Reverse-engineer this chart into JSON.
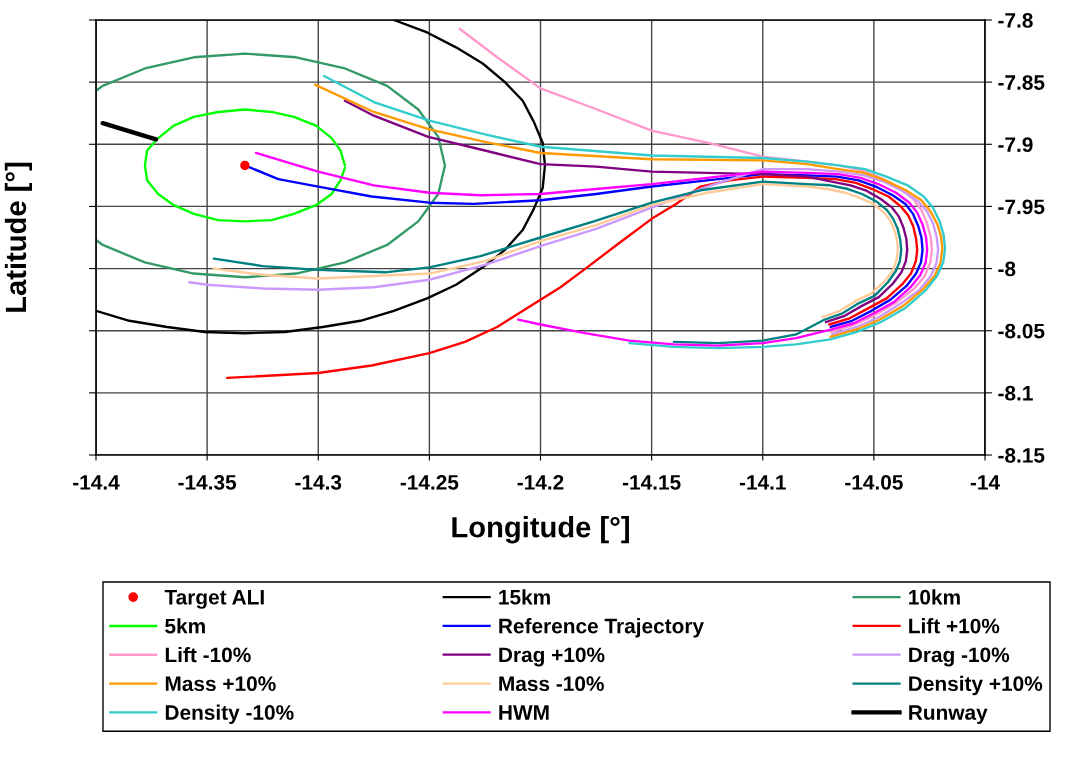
{
  "chart_data": {
    "type": "line",
    "xlabel": "Longitude [°]",
    "ylabel": "Latitude [°]",
    "xlim": [
      -14.4,
      -14
    ],
    "xticks": [
      -14.4,
      -14.35,
      -14.3,
      -14.25,
      -14.2,
      -14.15,
      -14.1,
      -14.05,
      -14
    ],
    "ylim": [
      -8.15,
      -7.8
    ],
    "yticks": [
      -7.8,
      -7.85,
      -7.9,
      -7.95,
      -8,
      -8.05,
      -8.1,
      -8.15
    ],
    "grid": true,
    "legend": "bottom",
    "series": [
      {
        "name": "Target ALI",
        "type": "scatter",
        "marker": "circle",
        "color": "#ff0000",
        "x": [
          -14.333
        ],
        "values": [
          -7.917
        ]
      },
      {
        "name": "15km",
        "color": "#000000",
        "x": [
          -14.266,
          -14.251,
          -14.238,
          -14.226,
          -14.216,
          -14.208,
          -14.203,
          -14.199,
          -14.198,
          -14.199,
          -14.203,
          -14.208,
          -14.216,
          -14.226,
          -14.238,
          -14.251,
          -14.266,
          -14.281,
          -14.298,
          -14.315,
          -14.333,
          -14.351,
          -14.368,
          -14.385,
          -14.4
        ],
        "values": [
          -7.8,
          -7.81,
          -7.822,
          -7.835,
          -7.85,
          -7.865,
          -7.882,
          -7.899,
          -7.917,
          -7.935,
          -7.952,
          -7.969,
          -7.985,
          -7.999,
          -8.013,
          -8.024,
          -8.034,
          -8.042,
          -8.047,
          -8.051,
          -8.052,
          -8.051,
          -8.047,
          -8.042,
          -8.034
        ]
      },
      {
        "name": "10km",
        "color": "#339966",
        "x": [
          -14.4,
          -14.397,
          -14.378,
          -14.356,
          -14.333,
          -14.31,
          -14.288,
          -14.269,
          -14.255,
          -14.246,
          -14.243,
          -14.246,
          -14.255,
          -14.269,
          -14.288,
          -14.31,
          -14.333,
          -14.356,
          -14.378,
          -14.397,
          -14.4
        ],
        "values": [
          -7.857,
          -7.853,
          -7.839,
          -7.83,
          -7.827,
          -7.83,
          -7.839,
          -7.853,
          -7.872,
          -7.894,
          -7.917,
          -7.94,
          -7.962,
          -7.981,
          -7.995,
          -8.004,
          -8.007,
          -8.004,
          -7.995,
          -7.981,
          -7.977
        ]
      },
      {
        "name": "5km",
        "color": "#00ff00",
        "x": [
          -14.288,
          -14.29,
          -14.294,
          -14.301,
          -14.311,
          -14.321,
          -14.333,
          -14.345,
          -14.356,
          -14.365,
          -14.372,
          -14.377,
          -14.378,
          -14.377,
          -14.372,
          -14.365,
          -14.356,
          -14.345,
          -14.333,
          -14.321,
          -14.311,
          -14.301,
          -14.294,
          -14.29,
          -14.288
        ],
        "values": [
          -7.917,
          -7.905,
          -7.895,
          -7.885,
          -7.878,
          -7.874,
          -7.872,
          -7.874,
          -7.878,
          -7.885,
          -7.895,
          -7.905,
          -7.917,
          -7.929,
          -7.94,
          -7.949,
          -7.956,
          -7.961,
          -7.962,
          -7.961,
          -7.956,
          -7.949,
          -7.94,
          -7.929,
          -7.919
        ]
      },
      {
        "name": "Reference Trajectory",
        "color": "#0000ff",
        "x": [
          -14.0694,
          -14.0598,
          -14.0511,
          -14.0425,
          -14.0353,
          -14.031,
          -14.0288,
          -14.0281,
          -14.0286,
          -14.03,
          -14.0324,
          -14.0358,
          -14.0415,
          -14.0492,
          -14.0569,
          -14.0665,
          -14.08,
          -14.1,
          -14.125,
          -14.15,
          -14.175,
          -14.2,
          -14.23,
          -14.25,
          -14.276,
          -14.3,
          -14.318,
          -14.333
        ],
        "values": [
          -8.047,
          -8.042,
          -8.034,
          -8.025,
          -8.014,
          -8.004,
          -7.995,
          -7.985,
          -7.975,
          -7.966,
          -7.956,
          -7.948,
          -7.941,
          -7.934,
          -7.929,
          -7.926,
          -7.925,
          -7.924,
          -7.929,
          -7.934,
          -7.94,
          -7.945,
          -7.948,
          -7.947,
          -7.942,
          -7.934,
          -7.928,
          -7.917
        ]
      },
      {
        "name": "Lift +10%",
        "color": "#ff0000",
        "x": [
          -14.0701,
          -14.0609,
          -14.0526,
          -14.0443,
          -14.0374,
          -14.0333,
          -14.0311,
          -14.0305,
          -14.031,
          -14.0323,
          -14.0346,
          -14.0379,
          -14.0434,
          -14.0507,
          -14.0581,
          -14.0673,
          -14.08,
          -14.1,
          -14.115,
          -14.128,
          -14.139,
          -14.15,
          -14.165,
          -14.179,
          -14.191,
          -14.207,
          -14.2195,
          -14.234,
          -14.25,
          -14.276,
          -14.3,
          -14.341
        ],
        "values": [
          -8.045,
          -8.04,
          -8.032,
          -8.024,
          -8.013,
          -8.004,
          -7.994,
          -7.985,
          -7.976,
          -7.966,
          -7.957,
          -7.95,
          -7.942,
          -7.936,
          -7.931,
          -7.928,
          -7.927,
          -7.926,
          -7.929,
          -7.934,
          -7.948,
          -7.96,
          -7.98,
          -7.999,
          -8.015,
          -8.033,
          -8.047,
          -8.059,
          -8.068,
          -8.078,
          -8.084,
          -8.088
        ]
      },
      {
        "name": "Lift -10%",
        "color": "#ff99cc",
        "x": [
          -14.0691,
          -14.0586,
          -14.0491,
          -14.0397,
          -14.0318,
          -14.0271,
          -14.0246,
          -14.0239,
          -14.0244,
          -14.026,
          -14.0286,
          -14.0323,
          -14.0386,
          -14.047,
          -14.0554,
          -14.0659,
          -14.08,
          -14.1,
          -14.124,
          -14.15,
          -14.176,
          -14.2,
          -14.2195,
          -14.2364
        ],
        "values": [
          -8.051,
          -8.045,
          -8.037,
          -8.027,
          -8.016,
          -8.006,
          -7.995,
          -7.985,
          -7.975,
          -7.964,
          -7.953,
          -7.944,
          -7.935,
          -7.927,
          -7.921,
          -7.917,
          -7.914,
          -7.91,
          -7.899,
          -7.889,
          -7.871,
          -7.855,
          -7.83,
          -7.807
        ]
      },
      {
        "name": "Drag +10%",
        "color": "#800080",
        "x": [
          -14.0716,
          -14.0631,
          -14.0554,
          -14.0478,
          -14.0414,
          -14.0376,
          -14.0356,
          -14.035,
          -14.0354,
          -14.0367,
          -14.0388,
          -14.0418,
          -14.0469,
          -14.0537,
          -14.0605,
          -14.069,
          -14.08,
          -14.1,
          -14.125,
          -14.15,
          -14.175,
          -14.2,
          -14.225,
          -14.2505,
          -14.275,
          -14.288
        ],
        "values": [
          -8.043,
          -8.038,
          -8.03,
          -8.023,
          -8.012,
          -8.003,
          -7.994,
          -7.985,
          -7.976,
          -7.967,
          -7.958,
          -7.951,
          -7.944,
          -7.937,
          -7.933,
          -7.93,
          -7.926,
          -7.924,
          -7.923,
          -7.922,
          -7.918,
          -7.916,
          -7.905,
          -7.894,
          -7.877,
          -7.865
        ]
      },
      {
        "name": "Drag -10%",
        "color": "#cc99ff",
        "x": [
          -14.0688,
          -14.0577,
          -14.0477,
          -14.0378,
          -14.0294,
          -14.0244,
          -14.0219,
          -14.0211,
          -14.0217,
          -14.0233,
          -14.0261,
          -14.03,
          -14.0366,
          -14.0455,
          -14.0544,
          -14.0655,
          -14.08,
          -14.1,
          -14.125,
          -14.15,
          -14.175,
          -14.2,
          -14.225,
          -14.25,
          -14.275,
          -14.3,
          -14.325,
          -14.35,
          -14.358
        ],
        "values": [
          -8.053,
          -8.047,
          -8.039,
          -8.028,
          -8.017,
          -8.006,
          -7.996,
          -7.985,
          -7.975,
          -7.964,
          -7.954,
          -7.946,
          -7.938,
          -7.93,
          -7.925,
          -7.922,
          -7.92,
          -7.92,
          -7.934,
          -7.951,
          -7.968,
          -7.982,
          -7.997,
          -8.009,
          -8.015,
          -8.017,
          -8.016,
          -8.013,
          -8.011
        ]
      },
      {
        "name": "Mass +10%",
        "color": "#ff9900",
        "x": [
          -14.0695,
          -14.0578,
          -14.0473,
          -14.0368,
          -14.028,
          -14.0227,
          -14.02,
          -14.0192,
          -14.0198,
          -14.0215,
          -14.0245,
          -14.0286,
          -14.0356,
          -14.0449,
          -14.0543,
          -14.066,
          -14.08,
          -14.1,
          -14.15,
          -14.2,
          -14.225,
          -14.25,
          -14.275,
          -14.3015
        ],
        "values": [
          -8.055,
          -8.049,
          -8.041,
          -8.03,
          -8.017,
          -8.006,
          -7.995,
          -7.984,
          -7.974,
          -7.964,
          -7.954,
          -7.945,
          -7.937,
          -7.929,
          -7.923,
          -7.92,
          -7.916,
          -7.913,
          -7.912,
          -7.907,
          -7.898,
          -7.888,
          -7.874,
          -7.852
        ]
      },
      {
        "name": "Mass -10%",
        "color": "#ffcc99",
        "x": [
          -14.0732,
          -14.0653,
          -14.0582,
          -14.0511,
          -14.0451,
          -14.0416,
          -14.0398,
          -14.0392,
          -14.0396,
          -14.0408,
          -14.0428,
          -14.0455,
          -14.0503,
          -14.0566,
          -14.0629,
          -14.0708,
          -14.08,
          -14.1,
          -14.125,
          -14.15,
          -14.175,
          -14.2,
          -14.225,
          -14.25,
          -14.275,
          -14.3,
          -14.325,
          -14.347
        ],
        "values": [
          -8.039,
          -8.034,
          -8.026,
          -8.02,
          -8.01,
          -8.002,
          -7.993,
          -7.985,
          -7.977,
          -7.969,
          -7.961,
          -7.955,
          -7.948,
          -7.943,
          -7.939,
          -7.936,
          -7.934,
          -7.932,
          -7.939,
          -7.949,
          -7.965,
          -7.978,
          -7.994,
          -8.004,
          -8.006,
          -8.008,
          -8.005,
          -8.0
        ]
      },
      {
        "name": "Density +10%",
        "color": "#008080",
        "x": [
          -14.14,
          -14.12,
          -14.1,
          -14.085,
          -14.0721,
          -14.0641,
          -14.0569,
          -14.0497,
          -14.0437,
          -14.0401,
          -14.0383,
          -14.0377,
          -14.0381,
          -14.0393,
          -14.0413,
          -14.0441,
          -14.0489,
          -14.0553,
          -14.0617,
          -14.0697,
          -14.08,
          -14.1,
          -14.128,
          -14.15,
          -14.176,
          -14.2,
          -14.227,
          -14.25,
          -14.27,
          -14.3,
          -14.325,
          -14.347
        ],
        "values": [
          -8.059,
          -8.06,
          -8.058,
          -8.053,
          -8.041,
          -8.036,
          -8.028,
          -8.022,
          -8.011,
          -8.002,
          -7.994,
          -7.985,
          -7.977,
          -7.968,
          -7.96,
          -7.953,
          -7.946,
          -7.94,
          -7.936,
          -7.933,
          -7.932,
          -7.93,
          -7.937,
          -7.947,
          -7.962,
          -7.975,
          -7.99,
          -7.999,
          -8.003,
          -8.001,
          -7.998,
          -7.992
        ]
      },
      {
        "name": "Density -10%",
        "color": "#33cccc",
        "x": [
          -14.16,
          -14.14,
          -14.12,
          -14.1,
          -14.085,
          -14.0696,
          -14.0576,
          -14.0468,
          -14.036,
          -14.027,
          -14.0216,
          -14.0188,
          -14.018,
          -14.0186,
          -14.0204,
          -14.0234,
          -14.0276,
          -14.0348,
          -14.0444,
          -14.054,
          -14.066,
          -14.08,
          -14.1,
          -14.15,
          -14.2,
          -14.225,
          -14.25,
          -14.275,
          -14.2974
        ],
        "values": [
          -8.06,
          -8.063,
          -8.064,
          -8.063,
          -8.061,
          -8.057,
          -8.051,
          -8.043,
          -8.032,
          -8.018,
          -8.006,
          -7.995,
          -7.984,
          -7.973,
          -7.962,
          -7.951,
          -7.942,
          -7.933,
          -7.926,
          -7.92,
          -7.917,
          -7.914,
          -7.911,
          -7.909,
          -7.902,
          -7.892,
          -7.881,
          -7.866,
          -7.845
        ]
      },
      {
        "name": "HWM",
        "color": "#ff00ff",
        "x": [
          -14.21,
          -14.2,
          -14.18,
          -14.16,
          -14.14,
          -14.12,
          -14.1,
          -14.085,
          -14.069,
          -14.059,
          -14.05,
          -14.041,
          -14.0335,
          -14.029,
          -14.0267,
          -14.026,
          -14.0265,
          -14.028,
          -14.0305,
          -14.034,
          -14.04,
          -14.048,
          -14.056,
          -14.066,
          -14.08,
          -14.1,
          -14.125,
          -14.15,
          -14.175,
          -14.2,
          -14.227,
          -14.25,
          -14.275,
          -14.3,
          -14.315,
          -14.328
        ],
        "values": [
          -8.041,
          -8.045,
          -8.052,
          -8.058,
          -8.061,
          -8.062,
          -8.06,
          -8.056,
          -8.049,
          -8.044,
          -8.036,
          -8.027,
          -8.015,
          -8.005,
          -7.995,
          -7.985,
          -7.975,
          -7.965,
          -7.955,
          -7.947,
          -7.939,
          -7.932,
          -7.927,
          -7.924,
          -7.923,
          -7.922,
          -7.927,
          -7.932,
          -7.936,
          -7.94,
          -7.941,
          -7.939,
          -7.933,
          -7.922,
          -7.914,
          -7.907
        ]
      },
      {
        "name": "Runway",
        "color": "#000000",
        "x": [
          -14.397,
          -14.373
        ],
        "values": [
          -7.883,
          -7.896
        ]
      }
    ]
  }
}
